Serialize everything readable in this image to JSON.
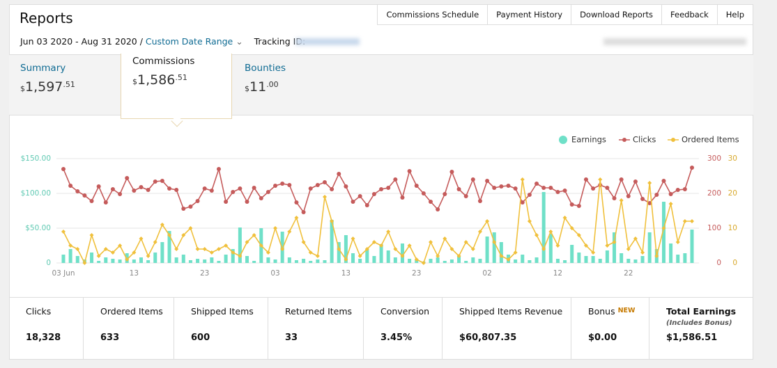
{
  "header": {
    "title": "Reports",
    "nav": [
      "Commissions Schedule",
      "Payment History",
      "Download Reports",
      "Feedback",
      "Help"
    ]
  },
  "filters": {
    "date_range": "Jun 03 2020 - Aug 31 2020 /",
    "custom": "Custom Date Range",
    "tracking_label": "Tracking ID:"
  },
  "tabs": [
    {
      "label": "Summary",
      "currency": "$",
      "whole": "1,597",
      "cents": ".51"
    },
    {
      "label": "Commissions",
      "currency": "$",
      "whole": "1,586",
      "cents": ".51"
    },
    {
      "label": "Bounties",
      "currency": "$",
      "whole": "11",
      "cents": ".00"
    }
  ],
  "chart_data": {
    "type": "combo",
    "categories": [
      "03 Jun",
      null,
      null,
      null,
      null,
      null,
      null,
      null,
      null,
      null,
      "13",
      null,
      null,
      null,
      null,
      null,
      null,
      null,
      null,
      null,
      "23",
      null,
      null,
      null,
      null,
      null,
      null,
      null,
      null,
      null,
      "03",
      null,
      null,
      null,
      null,
      null,
      null,
      null,
      null,
      null,
      "13",
      null,
      null,
      null,
      null,
      null,
      null,
      null,
      null,
      null,
      "23",
      null,
      null,
      null,
      null,
      null,
      null,
      null,
      null,
      null,
      "02",
      null,
      null,
      null,
      null,
      null,
      null,
      null,
      null,
      null,
      "12",
      null,
      null,
      null,
      null,
      null,
      null,
      null,
      null,
      null,
      "22",
      null,
      null,
      null,
      null,
      null,
      null,
      null,
      null,
      null
    ],
    "series": [
      {
        "name": "Earnings",
        "color": "#6fe0c8",
        "kind": "bar",
        "axis": "y",
        "values": [
          12,
          20,
          10,
          5,
          15,
          3,
          8,
          6,
          5,
          14,
          5,
          8,
          4,
          15,
          30,
          46,
          8,
          12,
          4,
          6,
          5,
          8,
          3,
          12,
          20,
          51,
          10,
          3,
          50,
          8,
          5,
          45,
          8,
          4,
          6,
          3,
          5,
          4,
          62,
          30,
          40,
          14,
          6,
          20,
          10,
          27,
          18,
          8,
          28,
          6,
          4,
          2,
          6,
          8,
          3,
          5,
          10,
          3,
          8,
          6,
          38,
          44,
          30,
          12,
          5,
          12,
          4,
          8,
          102,
          42,
          6,
          4,
          26,
          15,
          10,
          10,
          6,
          18,
          44,
          14,
          6,
          5,
          10,
          44,
          20,
          88,
          28,
          12,
          14,
          48
        ]
      },
      {
        "name": "Clicks",
        "color": "#c55b5b",
        "kind": "line",
        "axis": "y2",
        "values": [
          270,
          222,
          206,
          194,
          178,
          220,
          174,
          212,
          198,
          244,
          208,
          218,
          210,
          234,
          236,
          214,
          210,
          156,
          162,
          178,
          214,
          208,
          270,
          176,
          204,
          214,
          176,
          216,
          186,
          204,
          222,
          228,
          224,
          174,
          146,
          214,
          224,
          232,
          212,
          256,
          220,
          176,
          192,
          166,
          198,
          212,
          216,
          240,
          188,
          264,
          222,
          200,
          176,
          154,
          198,
          262,
          212,
          192,
          240,
          178,
          236,
          216,
          220,
          222,
          214,
          174,
          196,
          228,
          216,
          216,
          204,
          208,
          168,
          164,
          240,
          214,
          224,
          216,
          186,
          240,
          192,
          234,
          184,
          172,
          196,
          236,
          198,
          210,
          212,
          274
        ]
      },
      {
        "name": "Ordered Items",
        "color": "#f0c03c",
        "kind": "line",
        "axis": "y3",
        "values": [
          9,
          5,
          4,
          0,
          8,
          2,
          4,
          3,
          5,
          1,
          3,
          7,
          2,
          6,
          11,
          8,
          4,
          8,
          10,
          4,
          4,
          3,
          4,
          5,
          3,
          2,
          6,
          8,
          5,
          3,
          10,
          4,
          9,
          13,
          6,
          3,
          2,
          19,
          12,
          4,
          1,
          7,
          2,
          4,
          6,
          5,
          9,
          4,
          2,
          5,
          1,
          0,
          6,
          2,
          7,
          4,
          2,
          6,
          4,
          9,
          12,
          6,
          2,
          1,
          3,
          24,
          12,
          8,
          4,
          9,
          5,
          13,
          10,
          8,
          5,
          3,
          24,
          5,
          6,
          18,
          4,
          7,
          3,
          23,
          2,
          10,
          17,
          6,
          12,
          12
        ]
      }
    ],
    "ylim": [
      0,
      150
    ],
    "yticks": [
      0,
      {
        "value": 50,
        "label": "$50.00"
      },
      {
        "value": 100,
        "label": "$100.00"
      },
      {
        "value": 150,
        "label": "$150.00"
      }
    ],
    "y2lim": [
      0,
      300
    ],
    "y2ticks": [
      0,
      100,
      200,
      300
    ],
    "y3lim": [
      0,
      30
    ],
    "y3ticks": [
      0,
      10,
      20,
      30
    ],
    "legend": "top-right"
  },
  "stats": [
    {
      "label": "Clicks",
      "value": "18,328"
    },
    {
      "label": "Ordered Items",
      "value": "633"
    },
    {
      "label": "Shipped Items",
      "value": "600"
    },
    {
      "label": "Returned Items",
      "value": "33"
    },
    {
      "label": "Conversion",
      "value": "3.45%"
    },
    {
      "label": "Shipped Items Revenue",
      "value": "$60,807.35"
    },
    {
      "label": "Bonus",
      "badge": "NEW",
      "value": "$0.00"
    },
    {
      "label": "Total Earnings",
      "note": "(Includes Bonus)",
      "value": "$1,586.51"
    }
  ]
}
